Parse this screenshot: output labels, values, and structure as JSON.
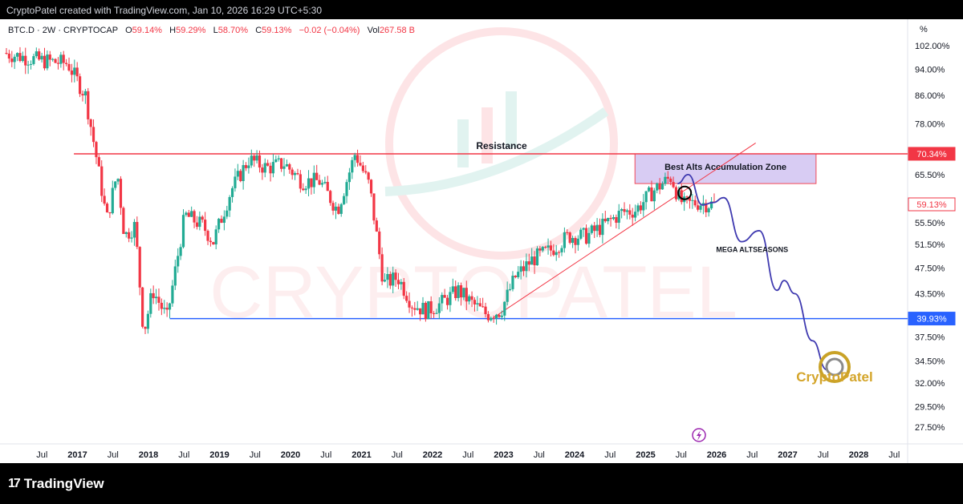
{
  "header": {
    "caption": "CryptoPatel created with TradingView.com, Jan 10, 2026 16:29 UTC+5:30"
  },
  "legend": {
    "symbol": "BTC.D · 2W · CRYPTOCAP",
    "o_label": "O",
    "o_value": "59.14%",
    "h_label": "H",
    "h_value": "59.29%",
    "l_label": "L",
    "l_value": "58.70%",
    "c_label": "C",
    "c_value": "59.13%",
    "change": "−0.02 (−0.04%)",
    "vol_label": "Vol",
    "vol_value": "267.58 B"
  },
  "footer": {
    "brand": "TradingView"
  },
  "watermark": {
    "text": "CRYPTOPATEL"
  },
  "colors": {
    "up": "#22ab94",
    "down": "#f23645",
    "resistance": "#f23645",
    "support": "#2962ff",
    "projection": "#3f3ab0",
    "zone_fill": "#d4c7f2",
    "trendline": "#f23645"
  },
  "chart_data": {
    "type": "candlestick",
    "title": "",
    "ylabel": "%",
    "y_scale": "log",
    "ylim": [
      25.5,
      106
    ],
    "y_ticks": [
      "102.00%",
      "94.00%",
      "86.00%",
      "78.00%",
      "70.34%",
      "65.50%",
      "59.13%",
      "55.50%",
      "51.50%",
      "47.50%",
      "43.50%",
      "39.93%",
      "37.50%",
      "34.50%",
      "32.00%",
      "29.50%",
      "27.50%"
    ],
    "x_ticks": [
      "Jul",
      "2017",
      "Jul",
      "2018",
      "Jul",
      "2019",
      "Jul",
      "2020",
      "Jul",
      "2021",
      "Jul",
      "2022",
      "Jul",
      "2023",
      "Jul",
      "2024",
      "Jul",
      "2025",
      "Jul",
      "2026",
      "Jul",
      "2027",
      "Jul",
      "2028",
      "Jul"
    ],
    "x_tick_dates": [
      2016.5,
      2017.0,
      2017.5,
      2018.0,
      2018.5,
      2019.0,
      2019.5,
      2020.0,
      2020.5,
      2021.0,
      2021.5,
      2022.0,
      2022.5,
      2023.0,
      2023.5,
      2024.0,
      2024.5,
      2025.0,
      2025.5,
      2026.0,
      2026.5,
      2027.0,
      2027.5,
      2028.0,
      2028.5
    ],
    "price_anchors": [
      [
        2016.0,
        99.5
      ],
      [
        2016.5,
        97
      ],
      [
        2016.9,
        96
      ],
      [
        2017.15,
        86
      ],
      [
        2017.3,
        70
      ],
      [
        2017.45,
        56
      ],
      [
        2017.6,
        66
      ],
      [
        2017.7,
        53
      ],
      [
        2017.85,
        55
      ],
      [
        2017.97,
        38
      ],
      [
        2018.1,
        44
      ],
      [
        2018.3,
        40
      ],
      [
        2018.55,
        57
      ],
      [
        2018.8,
        55
      ],
      [
        2018.95,
        52
      ],
      [
        2019.2,
        62
      ],
      [
        2019.45,
        69
      ],
      [
        2019.7,
        67
      ],
      [
        2019.95,
        68
      ],
      [
        2020.2,
        64
      ],
      [
        2020.45,
        64
      ],
      [
        2020.7,
        58
      ],
      [
        2020.95,
        70.5
      ],
      [
        2021.15,
        63
      ],
      [
        2021.35,
        45
      ],
      [
        2021.55,
        46
      ],
      [
        2021.75,
        42
      ],
      [
        2021.95,
        41
      ],
      [
        2022.15,
        42
      ],
      [
        2022.4,
        44
      ],
      [
        2022.6,
        42
      ],
      [
        2022.8,
        40.5
      ],
      [
        2023.0,
        41
      ],
      [
        2023.2,
        46
      ],
      [
        2023.45,
        49
      ],
      [
        2023.7,
        50.5
      ],
      [
        2023.95,
        53
      ],
      [
        2024.2,
        53
      ],
      [
        2024.45,
        55
      ],
      [
        2024.7,
        57.5
      ],
      [
        2024.9,
        58
      ],
      [
        2025.15,
        62
      ],
      [
        2025.4,
        65
      ],
      [
        2025.5,
        60.5
      ],
      [
        2025.58,
        59
      ],
      [
        2025.75,
        59.5
      ],
      [
        2025.98,
        59.13
      ]
    ],
    "projection": [
      [
        2025.45,
        63.5
      ],
      [
        2025.6,
        65.5
      ],
      [
        2025.8,
        59
      ],
      [
        2025.95,
        59.5
      ],
      [
        2026.1,
        60.5
      ],
      [
        2026.35,
        52
      ],
      [
        2026.6,
        54
      ],
      [
        2026.85,
        44
      ],
      [
        2026.95,
        45.5
      ],
      [
        2027.1,
        43.5
      ],
      [
        2027.35,
        37
      ],
      [
        2027.55,
        33.5
      ]
    ],
    "levels": [
      {
        "name": "Resistance",
        "value": 70.34,
        "start": 2016.95
      },
      {
        "name": "",
        "value": 39.93,
        "start": 2018.3
      }
    ],
    "trendline": [
      [
        2022.85,
        40.0
      ],
      [
        2026.55,
        73.0
      ]
    ],
    "zone": {
      "label": "Best Alts Accumulation Zone",
      "x0": 2024.85,
      "x1": 2027.4,
      "y0": 63.5,
      "y1": 70.3
    },
    "annotations": [
      {
        "text": "Resistance"
      },
      {
        "text": "MEGA ALTSEASONS"
      },
      {
        "text": "CryptoPatel"
      }
    ],
    "last_price": "59.13%",
    "resistance_price": "70.34%",
    "support_price": "39.93%"
  }
}
